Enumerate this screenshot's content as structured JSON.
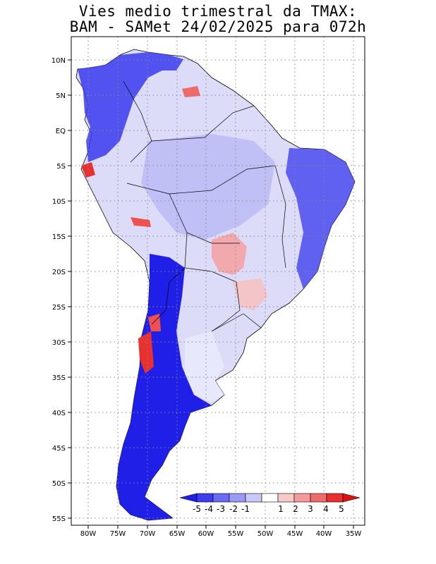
{
  "title_line1": "Vies medio trimestral da TMAX:",
  "title_line2": "BAM - SAMet 24/02/2025  para 072h",
  "map": {
    "lat_labels": [
      "10N",
      "5N",
      "EQ",
      "5S",
      "10S",
      "15S",
      "20S",
      "25S",
      "30S",
      "35S",
      "40S",
      "45S",
      "50S",
      "55S"
    ],
    "lon_labels": [
      "80W",
      "75W",
      "70W",
      "65W",
      "60W",
      "55W",
      "50W",
      "45W",
      "40W",
      "35W"
    ],
    "grid": "dotted"
  },
  "colorbar": {
    "labels": [
      "-5",
      "-4",
      "-3",
      "-2",
      "-1",
      "1",
      "2",
      "3",
      "4",
      "5"
    ],
    "colors": [
      "#1f1fe8",
      "#3d3df0",
      "#6a6af5",
      "#9a9af7",
      "#c9c9f9",
      "#ffffff",
      "#f7c9c9",
      "#f49a9a",
      "#ef6a6a",
      "#e83030",
      "#e01010"
    ]
  }
}
